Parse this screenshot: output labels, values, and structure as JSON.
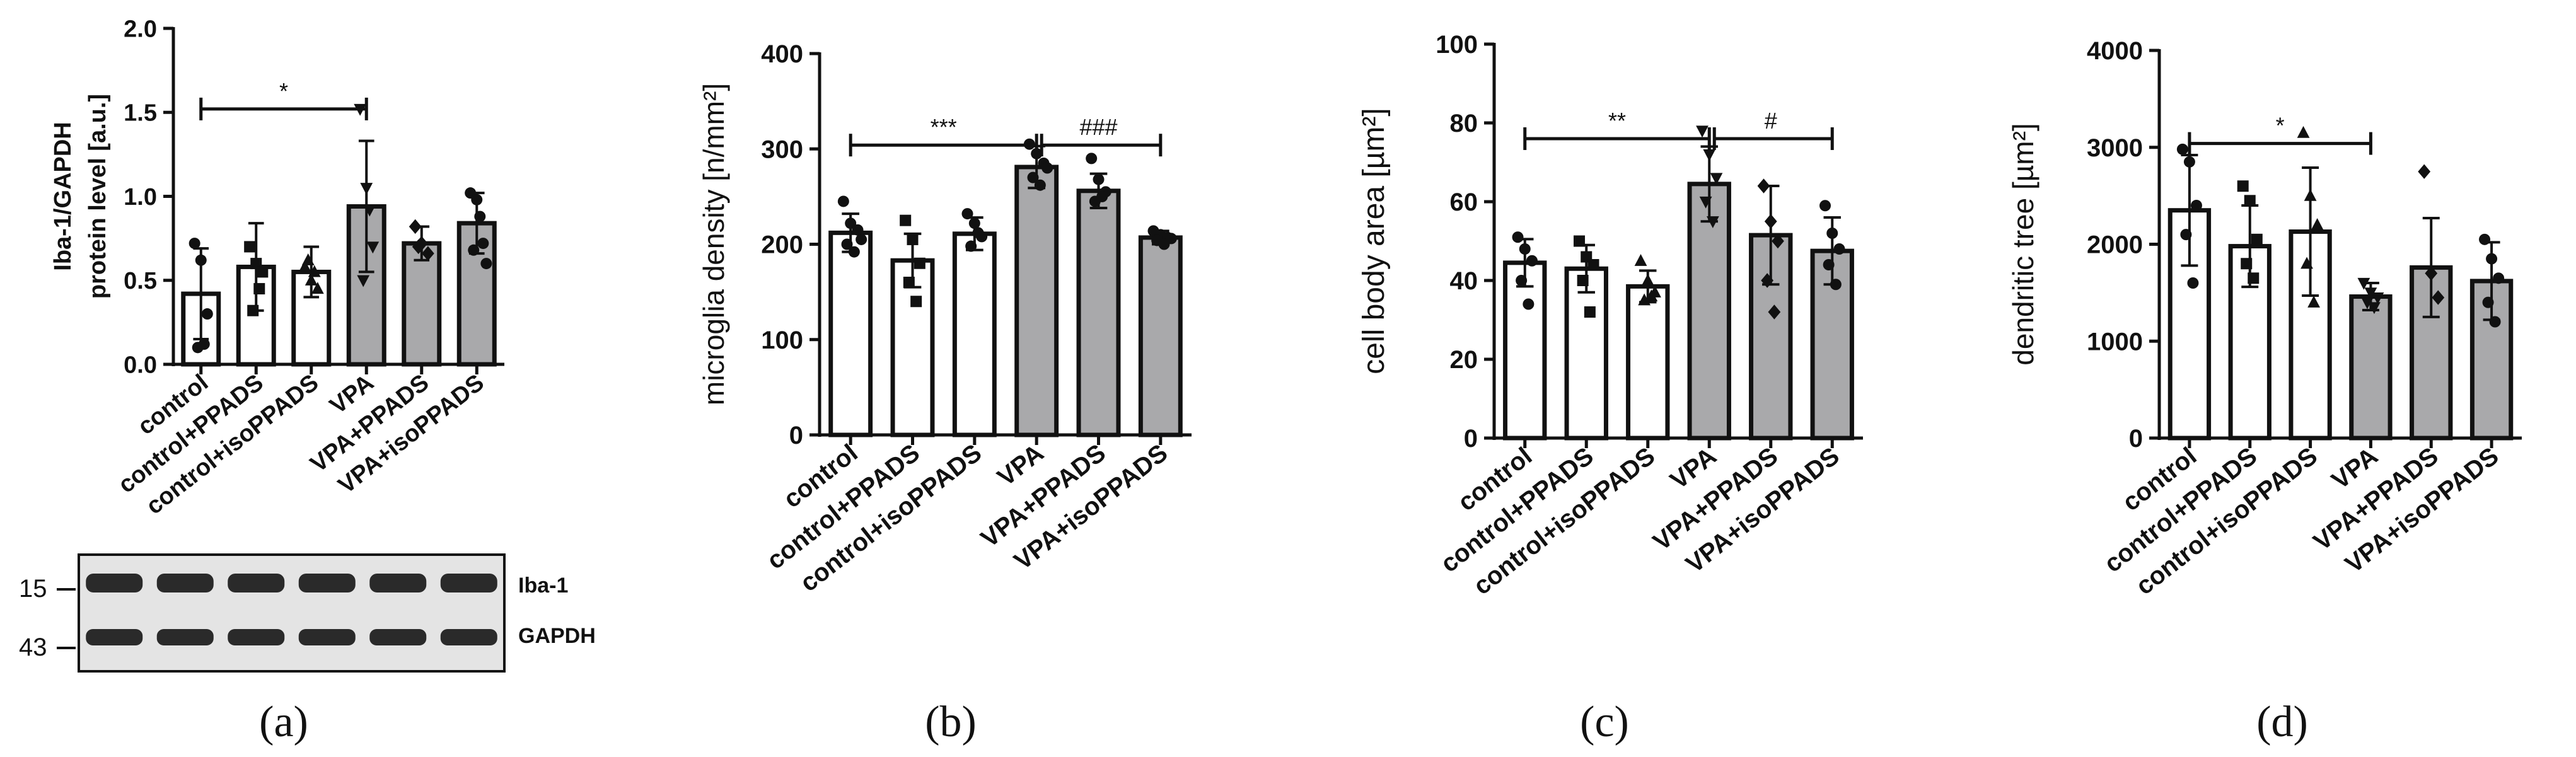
{
  "colors": {
    "axis": "#111111",
    "control_fill": "#ffffff",
    "vpa_fill": "#a9a9ab",
    "blot_bg": "#e4e4e4",
    "band": "#2a2a2a"
  },
  "chart_data": [
    {
      "type": "bar",
      "panel_label": "(a)",
      "ylabel_lines": [
        "Iba-1/GAPDH",
        "protein level [a.u.]"
      ],
      "ylim": [
        0,
        2.0
      ],
      "yticks": [
        "0.0",
        "0.5",
        "1.0",
        "1.5",
        "2.0"
      ],
      "categories": [
        "control",
        "control+PPADS",
        "control+isoPPADS",
        "VPA",
        "VPA+PPADS",
        "VPA+isoPPADS"
      ],
      "values": [
        0.42,
        0.58,
        0.55,
        0.94,
        0.72,
        0.84
      ],
      "errors": [
        0.27,
        0.26,
        0.15,
        0.39,
        0.1,
        0.18
      ],
      "groups": [
        "control",
        "control",
        "control",
        "vpa",
        "vpa",
        "vpa"
      ],
      "markers": [
        "circle",
        "square",
        "triangle",
        "triangle-down",
        "diamond",
        "circle"
      ],
      "points": [
        [
          0.72,
          0.62,
          0.3,
          0.1,
          0.12
        ],
        [
          0.7,
          0.6,
          0.55,
          0.32,
          0.45
        ],
        [
          0.58,
          0.5,
          0.45,
          0.62,
          0.55
        ],
        [
          1.52,
          1.05,
          0.7,
          0.5,
          0.92
        ],
        [
          0.82,
          0.72,
          0.66,
          0.7
        ],
        [
          1.02,
          0.98,
          0.72,
          0.68,
          0.88,
          0.6
        ]
      ],
      "significance": [
        {
          "from": 0,
          "to": 3,
          "label": "*"
        }
      ],
      "blot": {
        "markers": [
          "15",
          "43"
        ],
        "labels": [
          "Iba-1",
          "GAPDH"
        ]
      }
    },
    {
      "type": "bar",
      "panel_label": "(b)",
      "ylabel_lines": [
        "microglia density [n/mm²]"
      ],
      "ylim": [
        0,
        400
      ],
      "yticks": [
        "0",
        "100",
        "200",
        "300",
        "400"
      ],
      "categories": [
        "control",
        "control+PPADS",
        "control+isoPPADS",
        "VPA",
        "VPA+PPADS",
        "VPA+isoPPADS"
      ],
      "values": [
        212,
        183,
        211,
        281,
        256,
        207
      ],
      "errors": [
        20,
        28,
        17,
        22,
        18,
        7
      ],
      "groups": [
        "control",
        "control",
        "control",
        "vpa",
        "vpa",
        "vpa"
      ],
      "markers": [
        "circle",
        "square",
        "circle",
        "circle",
        "circle",
        "circle"
      ],
      "points": [
        [
          245,
          222,
          215,
          200,
          192,
          205
        ],
        [
          225,
          205,
          180,
          160,
          140
        ],
        [
          232,
          222,
          208,
          198,
          212
        ],
        [
          305,
          295,
          285,
          270,
          262,
          280
        ],
        [
          290,
          268,
          255,
          245,
          250
        ],
        [
          214,
          210,
          207,
          204,
          200,
          206
        ]
      ],
      "significance": [
        {
          "from": 0,
          "to": 3,
          "label": "***"
        },
        {
          "from": 3,
          "to": 5,
          "label": "###"
        }
      ]
    },
    {
      "type": "bar",
      "panel_label": "(c)",
      "ylabel_lines": [
        "cell body area [µm²]"
      ],
      "ylim": [
        0,
        100
      ],
      "yticks": [
        "0",
        "20",
        "40",
        "60",
        "80",
        "100"
      ],
      "categories": [
        "control",
        "control+PPADS",
        "control+isoPPADS",
        "VPA",
        "VPA+PPADS",
        "VPA+isoPPADS"
      ],
      "values": [
        44.5,
        43,
        38.5,
        64.5,
        51.5,
        47.5
      ],
      "errors": [
        6,
        6,
        4,
        9.5,
        12.5,
        8.5
      ],
      "groups": [
        "control",
        "control",
        "control",
        "vpa",
        "vpa",
        "vpa"
      ],
      "markers": [
        "circle",
        "square",
        "triangle",
        "triangle-down",
        "diamond",
        "circle"
      ],
      "points": [
        [
          51,
          48,
          45,
          40,
          34
        ],
        [
          50,
          46,
          44,
          40,
          32
        ],
        [
          45,
          40,
          37,
          35,
          36
        ],
        [
          78,
          72,
          66,
          60,
          55
        ],
        [
          64,
          55,
          50,
          40,
          32
        ],
        [
          59,
          52,
          48,
          44,
          39
        ]
      ],
      "significance": [
        {
          "from": 0,
          "to": 3,
          "label": "**"
        },
        {
          "from": 3,
          "to": 5,
          "label": "#"
        }
      ]
    },
    {
      "type": "bar",
      "panel_label": "(d)",
      "ylabel_lines": [
        "dendritic tree [µm²]"
      ],
      "ylim": [
        0,
        4000
      ],
      "yticks": [
        "0",
        "1000",
        "2000",
        "3000",
        "4000"
      ],
      "categories": [
        "control",
        "control+PPADS",
        "control+isoPPADS",
        "VPA",
        "VPA+PPADS",
        "VPA+isoPPADS"
      ],
      "values": [
        2350,
        1980,
        2130,
        1460,
        1760,
        1620
      ],
      "errors": [
        570,
        420,
        660,
        140,
        510,
        400
      ],
      "groups": [
        "control",
        "control",
        "control",
        "vpa",
        "vpa",
        "vpa"
      ],
      "markers": [
        "circle",
        "square",
        "triangle",
        "triangle-down",
        "diamond",
        "circle"
      ],
      "points": [
        [
          2980,
          2850,
          2400,
          2100,
          1600
        ],
        [
          2600,
          2450,
          2050,
          1800,
          1650
        ],
        [
          3150,
          2500,
          2200,
          1800,
          1400
        ],
        [
          1600,
          1500,
          1450,
          1400,
          1350
        ],
        [
          2750,
          1700,
          1450
        ],
        [
          2050,
          1850,
          1650,
          1400,
          1200
        ]
      ],
      "significance": [
        {
          "from": 0,
          "to": 3,
          "label": "*"
        }
      ]
    }
  ]
}
